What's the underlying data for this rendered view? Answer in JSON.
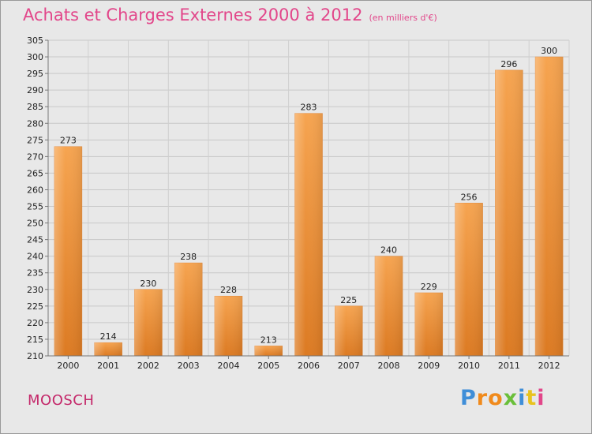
{
  "chart_data": {
    "type": "bar",
    "title": "Achats et Charges Externes 2000 à 2012",
    "subtitle": "(en milliers d'€)",
    "categories": [
      "2000",
      "2001",
      "2002",
      "2003",
      "2004",
      "2005",
      "2006",
      "2007",
      "2008",
      "2009",
      "2010",
      "2011",
      "2012"
    ],
    "values": [
      273,
      214,
      230,
      238,
      228,
      213,
      283,
      225,
      240,
      229,
      256,
      296,
      300
    ],
    "ylim": [
      210,
      305
    ],
    "ytick_step": 5,
    "grid": true,
    "bar_color": "#f29a45",
    "bar_color_dark": "#d9761e"
  },
  "location": "MOOSCH",
  "brand": {
    "letters": [
      "P",
      "r",
      "o",
      "x",
      "i",
      "t",
      "i"
    ],
    "colors": [
      "#3f8ed8",
      "#f08a1c",
      "#f08a1c",
      "#6abf3a",
      "#3f8ed8",
      "#e8c31e",
      "#e2468a"
    ]
  }
}
